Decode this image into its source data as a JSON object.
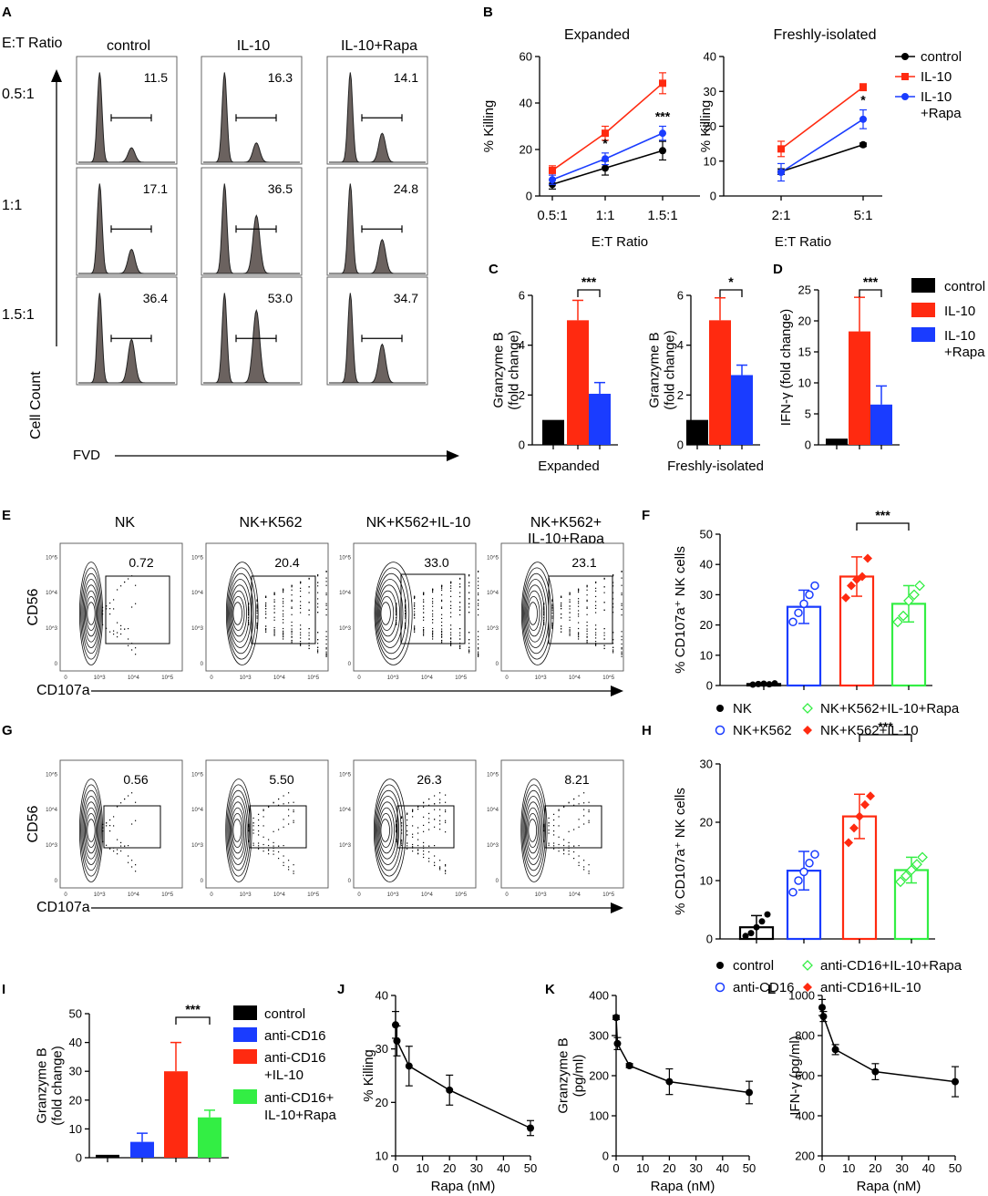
{
  "panels": {
    "A": {
      "letter": "A",
      "et_ratio_label": "E:T Ratio",
      "columns": [
        "control",
        "IL-10",
        "IL-10+Rapa"
      ],
      "rows": [
        "0.5:1",
        "1:1",
        "1.5:1"
      ],
      "values": [
        [
          "11.5",
          "16.3",
          "14.1"
        ],
        [
          "17.1",
          "36.5",
          "24.8"
        ],
        [
          "36.4",
          "53.0",
          "34.7"
        ]
      ],
      "y_label": "Cell Count",
      "x_label": "FVD",
      "hist_peak_heights": [
        [
          0.15,
          0.2,
          0.3
        ],
        [
          0.25,
          0.6,
          0.35
        ],
        [
          0.45,
          0.75,
          0.4
        ]
      ]
    },
    "B": {
      "letter": "B",
      "legend": [
        "control",
        "IL-10",
        "IL-10\n+Rapa"
      ]
    },
    "C": {
      "letter": "C"
    },
    "D": {
      "letter": "D",
      "legend": [
        "control",
        "IL-10",
        "IL-10\n+Rapa"
      ]
    },
    "E": {
      "letter": "E",
      "columns": [
        "NK",
        "NK+K562",
        "NK+K562+IL-10",
        "NK+K562+\nIL-10+Rapa"
      ],
      "values": [
        "0.72",
        "20.4",
        "33.0",
        "23.1"
      ],
      "y_label": "CD56",
      "x_label": "CD107a",
      "tick_labels": [
        "0",
        "10^3",
        "10^4",
        "10^5"
      ]
    },
    "F": {
      "letter": "F",
      "legend": [
        "NK",
        "NK+K562",
        "NK+K562+IL-10+Rapa",
        "NK+K562+IL-10"
      ]
    },
    "G": {
      "letter": "G",
      "columns": [
        "control",
        "anti-CD16",
        "anti-CD16+IL-10",
        "anti-CD16+\nIL-10+Rapa"
      ],
      "values": [
        "0.56",
        "5.50",
        "26.3",
        "8.21"
      ],
      "y_label": "CD56",
      "x_label": "CD107a",
      "tick_labels": [
        "0",
        "10^3",
        "10^4",
        "10^5"
      ]
    },
    "H": {
      "letter": "H",
      "legend": [
        "control",
        "anti-CD16",
        "anti-CD16+IL-10+Rapa",
        "anti-CD16+IL-10"
      ]
    },
    "I": {
      "letter": "I",
      "legend": [
        "control",
        "anti-CD16",
        "anti-CD16\n+IL-10",
        "anti-CD16+\nIL-10+Rapa"
      ]
    },
    "J": {
      "letter": "J"
    },
    "K": {
      "letter": "K"
    },
    "L": {
      "letter": "L"
    }
  },
  "colors": {
    "control": "#000000",
    "il10": "#ff2a10",
    "rapa": "#1a3cff",
    "green": "#33ee44",
    "hist": "#6b625f"
  },
  "chart_data": [
    {
      "id": "B-expanded",
      "type": "line",
      "title": "Expanded",
      "xlabel": "E:T Ratio",
      "ylabel": "% Killing",
      "categories": [
        "0.5:1",
        "1:1",
        "1.5:1"
      ],
      "ylim": [
        0,
        60
      ],
      "yticks": [
        0,
        20,
        40,
        60
      ],
      "series": [
        {
          "name": "control",
          "values": [
            5,
            12,
            19.5
          ],
          "errors": [
            2,
            3,
            4
          ]
        },
        {
          "name": "IL-10",
          "values": [
            11,
            27,
            48.5
          ],
          "errors": [
            2,
            3,
            4.5
          ]
        },
        {
          "name": "IL-10+Rapa",
          "values": [
            7,
            16,
            27
          ],
          "errors": [
            2,
            2.5,
            3
          ]
        }
      ],
      "annotations": [
        {
          "label": "*",
          "cat": 1
        },
        {
          "label": "***",
          "cat": 2
        }
      ]
    },
    {
      "id": "B-fresh",
      "type": "line",
      "title": "Freshly-isolated",
      "xlabel": "E:T Ratio",
      "ylabel": "% Killing",
      "categories": [
        "2:1",
        "5:1"
      ],
      "ylim": [
        0,
        40
      ],
      "yticks": [
        0,
        10,
        20,
        30,
        40
      ],
      "series": [
        {
          "name": "control",
          "values": [
            7,
            14.7
          ],
          "errors": [
            0.8,
            0.5
          ]
        },
        {
          "name": "IL-10",
          "values": [
            13.5,
            31.2
          ],
          "errors": [
            2.2,
            1
          ]
        },
        {
          "name": "IL-10+Rapa",
          "values": [
            6.8,
            22
          ],
          "errors": [
            2.5,
            2.7
          ]
        }
      ],
      "annotations": [
        {
          "label": "*",
          "cat": 1
        }
      ]
    },
    {
      "id": "C-expanded",
      "type": "bar",
      "xlabel": "Expanded",
      "ylabel": "Granzyme B\n(fold change)",
      "categories": [
        "control",
        "IL-10",
        "IL-10+Rapa"
      ],
      "values": [
        1,
        5,
        2.05
      ],
      "errors": [
        0,
        0.8,
        0.45
      ],
      "ylim": [
        0,
        6
      ],
      "yticks": [
        0,
        2,
        4,
        6
      ],
      "significance": {
        "label": "***",
        "from": 1,
        "to": 2
      }
    },
    {
      "id": "C-fresh",
      "type": "bar",
      "xlabel": "Freshly-isolated",
      "ylabel": "Granzyme B\n(fold change)",
      "categories": [
        "control",
        "IL-10",
        "IL-10+Rapa"
      ],
      "values": [
        1,
        5,
        2.8
      ],
      "errors": [
        0,
        0.9,
        0.4
      ],
      "ylim": [
        0,
        6
      ],
      "yticks": [
        0,
        2,
        4,
        6
      ],
      "significance": {
        "label": "*",
        "from": 1,
        "to": 2
      }
    },
    {
      "id": "D",
      "type": "bar",
      "xlabel": "",
      "ylabel": "IFN-γ (fold change)",
      "categories": [
        "control",
        "IL-10",
        "IL-10+Rapa"
      ],
      "values": [
        1,
        18.3,
        6.5
      ],
      "errors": [
        0,
        5.5,
        3
      ],
      "ylim": [
        0,
        25
      ],
      "yticks": [
        0,
        5,
        10,
        15,
        20,
        25
      ],
      "significance": {
        "label": "***",
        "from": 1,
        "to": 2
      }
    },
    {
      "id": "F",
      "type": "bar",
      "ylabel": "% CD107a⁺ NK cells",
      "categories": [
        "NK",
        "NK+K562",
        "NK+K562+IL-10",
        "NK+K562+IL-10+Rapa"
      ],
      "values": [
        0.5,
        26,
        36,
        27
      ],
      "errors": [
        0.3,
        5.5,
        6.5,
        6
      ],
      "ylim": [
        0,
        50
      ],
      "yticks": [
        0,
        10,
        20,
        30,
        40,
        50
      ],
      "points": [
        [
          0.3,
          0.5,
          0.6,
          0.4,
          0.7
        ],
        [
          21,
          24,
          27,
          30,
          33
        ],
        [
          29,
          33,
          35,
          36,
          42
        ],
        [
          21,
          23,
          28,
          30,
          33
        ]
      ],
      "significance": {
        "label": "***",
        "from": 2,
        "to": 3
      }
    },
    {
      "id": "H",
      "type": "bar",
      "ylabel": "% CD107a⁺ NK cells",
      "categories": [
        "control",
        "anti-CD16",
        "anti-CD16+IL-10",
        "anti-CD16+IL-10+Rapa"
      ],
      "values": [
        2,
        11.7,
        21,
        11.8
      ],
      "errors": [
        2,
        3.3,
        3.8,
        2.2
      ],
      "ylim": [
        0,
        30
      ],
      "yticks": [
        0,
        10,
        20,
        30
      ],
      "points": [
        [
          0.5,
          1,
          2,
          3,
          4.2
        ],
        [
          8,
          10,
          11.5,
          13,
          14.5
        ],
        [
          16.5,
          19,
          21,
          23,
          24.5
        ],
        [
          9.8,
          10.8,
          11.8,
          12.8,
          14
        ]
      ],
      "significance": {
        "label": "***",
        "from": 2,
        "to": 3
      }
    },
    {
      "id": "I",
      "type": "bar",
      "ylabel": "Granzyme B\n(fold change)",
      "categories": [
        "control",
        "anti-CD16",
        "anti-CD16+IL-10",
        "anti-CD16+IL-10+Rapa"
      ],
      "values": [
        1,
        5.5,
        30,
        14
      ],
      "errors": [
        0,
        3,
        10,
        2.5
      ],
      "ylim": [
        0,
        50
      ],
      "yticks": [
        0,
        10,
        20,
        30,
        40,
        50
      ],
      "significance": {
        "label": "***",
        "from": 2,
        "to": 3
      }
    },
    {
      "id": "J",
      "type": "line",
      "xlabel": "Rapa (nM)",
      "ylabel": "% Killing",
      "x": [
        0,
        0.5,
        5,
        20,
        50
      ],
      "y": [
        34.5,
        31.5,
        26.8,
        22.3,
        15.2
      ],
      "errors": [
        2.5,
        2.8,
        3.7,
        2.8,
        1.4
      ],
      "xlim": [
        0,
        50
      ],
      "xticks": [
        0,
        10,
        20,
        30,
        40,
        50
      ],
      "ylim": [
        10,
        40
      ],
      "yticks": [
        10,
        20,
        30,
        40
      ]
    },
    {
      "id": "K",
      "type": "line",
      "xlabel": "Rapa (nM)",
      "ylabel": "Granzyme B\n(pg/ml)",
      "x": [
        0,
        0.5,
        5,
        20,
        50
      ],
      "y": [
        345,
        280,
        225,
        185,
        158
      ],
      "errors": [
        5,
        15,
        5,
        32,
        28
      ],
      "xlim": [
        0,
        50
      ],
      "xticks": [
        0,
        10,
        20,
        30,
        40,
        50
      ],
      "ylim": [
        0,
        400
      ],
      "yticks": [
        0,
        100,
        200,
        300,
        400
      ]
    },
    {
      "id": "L",
      "type": "line",
      "xlabel": "Rapa (nM)",
      "ylabel": "IFN-γ (pg/ml)",
      "x": [
        0,
        0.5,
        5,
        20,
        50
      ],
      "y": [
        940,
        895,
        730,
        620,
        570
      ],
      "errors": [
        40,
        25,
        25,
        40,
        75
      ],
      "xlim": [
        0,
        50
      ],
      "xticks": [
        0,
        10,
        20,
        30,
        40,
        50
      ],
      "ylim": [
        200,
        1000
      ],
      "yticks": [
        200,
        400,
        600,
        800,
        1000
      ]
    }
  ]
}
